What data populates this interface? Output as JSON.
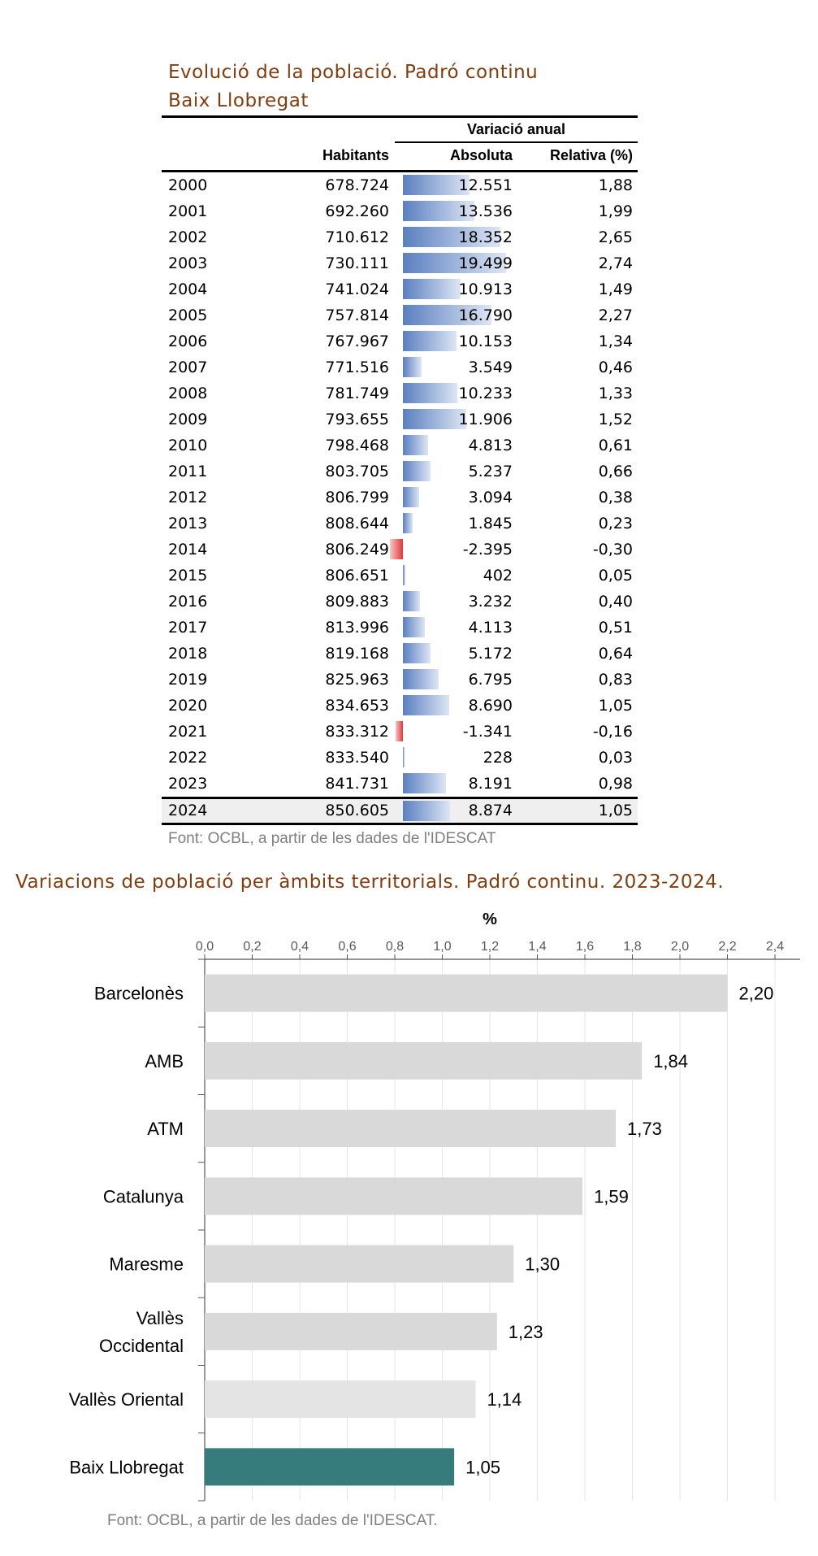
{
  "table": {
    "title_line1": "Evolució de la població. Padró continu",
    "title_line2": "Baix Llobregat",
    "group_header": "Variació anual",
    "col_habitants": "Habitants",
    "col_absoluta": "Absoluta",
    "col_relativa": "Relativa (%)",
    "rows": [
      {
        "year": "2000",
        "habitants": "678.724",
        "absoluta": "12.551",
        "relativa": "1,88",
        "abs_value": 12551
      },
      {
        "year": "2001",
        "habitants": "692.260",
        "absoluta": "13.536",
        "relativa": "1,99",
        "abs_value": 13536
      },
      {
        "year": "2002",
        "habitants": "710.612",
        "absoluta": "18.352",
        "relativa": "2,65",
        "abs_value": 18352
      },
      {
        "year": "2003",
        "habitants": "730.111",
        "absoluta": "19.499",
        "relativa": "2,74",
        "abs_value": 19499
      },
      {
        "year": "2004",
        "habitants": "741.024",
        "absoluta": "10.913",
        "relativa": "1,49",
        "abs_value": 10913
      },
      {
        "year": "2005",
        "habitants": "757.814",
        "absoluta": "16.790",
        "relativa": "2,27",
        "abs_value": 16790
      },
      {
        "year": "2006",
        "habitants": "767.967",
        "absoluta": "10.153",
        "relativa": "1,34",
        "abs_value": 10153
      },
      {
        "year": "2007",
        "habitants": "771.516",
        "absoluta": "3.549",
        "relativa": "0,46",
        "abs_value": 3549
      },
      {
        "year": "2008",
        "habitants": "781.749",
        "absoluta": "10.233",
        "relativa": "1,33",
        "abs_value": 10233
      },
      {
        "year": "2009",
        "habitants": "793.655",
        "absoluta": "11.906",
        "relativa": "1,52",
        "abs_value": 11906
      },
      {
        "year": "2010",
        "habitants": "798.468",
        "absoluta": "4.813",
        "relativa": "0,61",
        "abs_value": 4813
      },
      {
        "year": "2011",
        "habitants": "803.705",
        "absoluta": "5.237",
        "relativa": "0,66",
        "abs_value": 5237
      },
      {
        "year": "2012",
        "habitants": "806.799",
        "absoluta": "3.094",
        "relativa": "0,38",
        "abs_value": 3094
      },
      {
        "year": "2013",
        "habitants": "808.644",
        "absoluta": "1.845",
        "relativa": "0,23",
        "abs_value": 1845
      },
      {
        "year": "2014",
        "habitants": "806.249",
        "absoluta": "-2.395",
        "relativa": "-0,30",
        "abs_value": -2395
      },
      {
        "year": "2015",
        "habitants": "806.651",
        "absoluta": "402",
        "relativa": "0,05",
        "abs_value": 402
      },
      {
        "year": "2016",
        "habitants": "809.883",
        "absoluta": "3.232",
        "relativa": "0,40",
        "abs_value": 3232
      },
      {
        "year": "2017",
        "habitants": "813.996",
        "absoluta": "4.113",
        "relativa": "0,51",
        "abs_value": 4113
      },
      {
        "year": "2018",
        "habitants": "819.168",
        "absoluta": "5.172",
        "relativa": "0,64",
        "abs_value": 5172
      },
      {
        "year": "2019",
        "habitants": "825.963",
        "absoluta": "6.795",
        "relativa": "0,83",
        "abs_value": 6795
      },
      {
        "year": "2020",
        "habitants": "834.653",
        "absoluta": "8.690",
        "relativa": "1,05",
        "abs_value": 8690
      },
      {
        "year": "2021",
        "habitants": "833.312",
        "absoluta": "-1.341",
        "relativa": "-0,16",
        "abs_value": -1341
      },
      {
        "year": "2022",
        "habitants": "833.540",
        "absoluta": "228",
        "relativa": "0,03",
        "abs_value": 228
      },
      {
        "year": "2023",
        "habitants": "841.731",
        "absoluta": "8.191",
        "relativa": "0,98",
        "abs_value": 8191
      },
      {
        "year": "2024",
        "habitants": "850.605",
        "absoluta": "8.874",
        "relativa": "1,05",
        "abs_value": 8874
      }
    ],
    "source": "Font: OCBL, a partir de les dades de l'IDESCAT",
    "colors": {
      "positive_bar": "#5b7fc0",
      "negative_bar": "#e2383a",
      "title": "#843c0c"
    }
  },
  "chart_title": "Variacions de població per àmbits territorials. Padró continu. 2023-2024.",
  "chart_source": "Font: OCBL, a partir de les dades de l'IDESCAT.",
  "chart_data": {
    "type": "bar",
    "orientation": "horizontal",
    "title": "",
    "xlabel": "%",
    "xlim": [
      0,
      2.4
    ],
    "ticks": [
      "0,0",
      "0,2",
      "0,4",
      "0,6",
      "0,8",
      "1,0",
      "1,2",
      "1,4",
      "1,6",
      "1,8",
      "2,0",
      "2,2",
      "2,4"
    ],
    "categories": [
      [
        "Barcelonès"
      ],
      [
        "AMB"
      ],
      [
        "ATM"
      ],
      [
        "Catalunya"
      ],
      [
        "Maresme"
      ],
      [
        "Vallès",
        "Occidental"
      ],
      [
        "Vallès Oriental"
      ],
      [
        "Baix Llobregat"
      ]
    ],
    "values": [
      2.2,
      1.84,
      1.73,
      1.59,
      1.3,
      1.23,
      1.14,
      1.05
    ],
    "value_labels": [
      "2,20",
      "1,84",
      "1,73",
      "1,59",
      "1,30",
      "1,23",
      "1,14",
      "1,05"
    ],
    "grid": true,
    "axis_position": "top",
    "colors": [
      "#d9d9d9",
      "#d9d9d9",
      "#d9d9d9",
      "#d9d9d9",
      "#d9d9d9",
      "#d9d9d9",
      "#e4e4e4",
      "#367c7c"
    ]
  }
}
